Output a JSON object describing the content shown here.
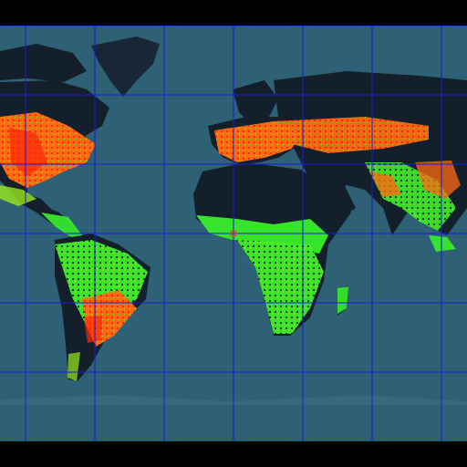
{
  "map": {
    "colors": {
      "ocean": "#2e6175",
      "land": "#13202b",
      "ice": "#182735",
      "grid": "#1a1adb",
      "green": "#38f02a",
      "yellowgreen": "#9be81e",
      "orange": "#ff6a12",
      "red": "#ff2a0a",
      "marker": "#ff3030"
    },
    "center_marker": "origin-marker"
  }
}
